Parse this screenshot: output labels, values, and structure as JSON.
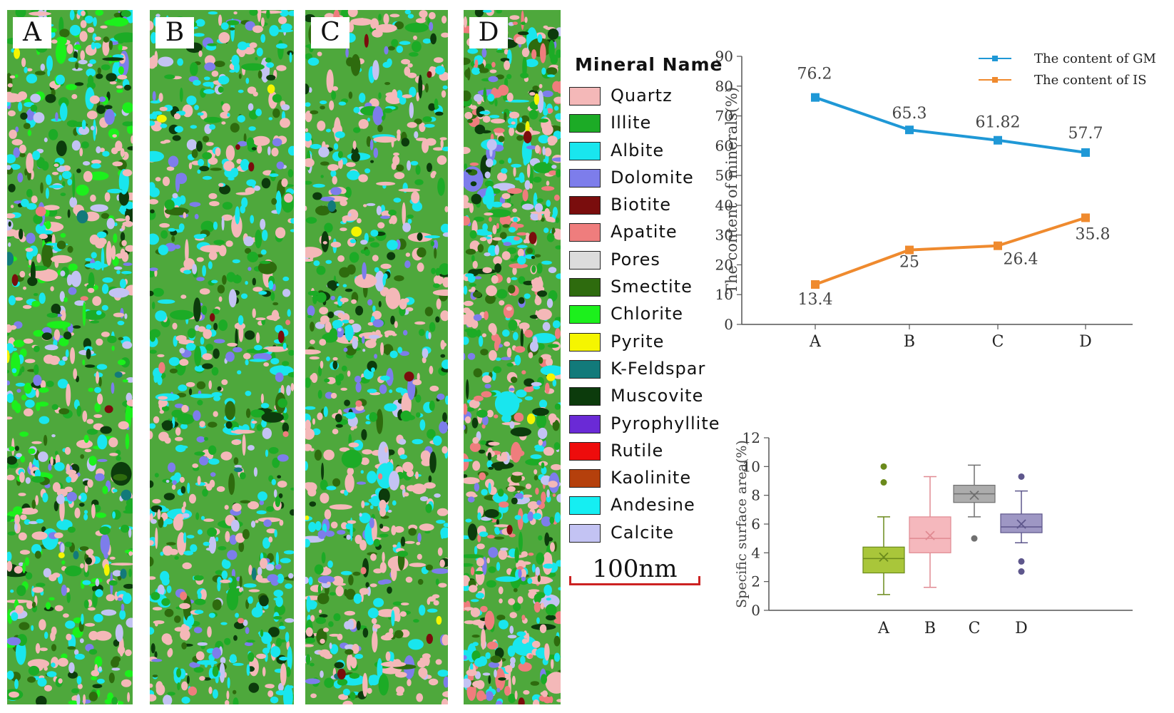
{
  "panels": [
    {
      "label": "A"
    },
    {
      "label": "B"
    },
    {
      "label": "C"
    },
    {
      "label": "D"
    }
  ],
  "legend": {
    "title": "Mineral Name",
    "items": [
      {
        "name": "Quartz",
        "color": "#f4b8b8"
      },
      {
        "name": "Illite",
        "color": "#1cab26"
      },
      {
        "name": "Albite",
        "color": "#19e6ee"
      },
      {
        "name": "Dolomite",
        "color": "#7d7deb"
      },
      {
        "name": "Biotite",
        "color": "#7a0d0d"
      },
      {
        "name": "Apatite",
        "color": "#ef7d7d"
      },
      {
        "name": "Pores",
        "color": "#dcdcdc"
      },
      {
        "name": "Smectite",
        "color": "#2e6b0e"
      },
      {
        "name": "Chlorite",
        "color": "#1cf01c"
      },
      {
        "name": "Pyrite",
        "color": "#f5f500"
      },
      {
        "name": "K-Feldspar",
        "color": "#127a7a"
      },
      {
        "name": "Muscovite",
        "color": "#0c3b0c"
      },
      {
        "name": "Pyrophyllite",
        "color": "#6a2ad6"
      },
      {
        "name": "Rutile",
        "color": "#ee0c0c"
      },
      {
        "name": "Kaolinite",
        "color": "#b5400c"
      },
      {
        "name": "Andesine",
        "color": "#15eef2"
      },
      {
        "name": "Calcite",
        "color": "#c3c3f3"
      }
    ]
  },
  "scale_bar": {
    "label": "100nm",
    "color": "#cc2222"
  },
  "chart_data": [
    {
      "type": "line",
      "title": "",
      "xlabel": "",
      "ylabel": "The content of minerals(%)",
      "categories": [
        "A",
        "B",
        "C",
        "D"
      ],
      "ylim": [
        0,
        90
      ],
      "yticks": [
        0,
        10,
        20,
        30,
        40,
        50,
        60,
        70,
        80,
        90
      ],
      "legend_position": "top-right",
      "series": [
        {
          "name": "The content of GM",
          "color": "#1f98d6",
          "values": [
            76.2,
            65.3,
            61.82,
            57.7
          ],
          "labels": [
            "76.2",
            "65.3",
            "61.82",
            "57.7"
          ]
        },
        {
          "name": "The  content of IS",
          "color": "#ef8a2e",
          "values": [
            13.4,
            25,
            26.4,
            35.8
          ],
          "labels": [
            "13.4",
            "25",
            "26.4",
            "35.8"
          ]
        }
      ]
    },
    {
      "type": "box",
      "title": "",
      "xlabel": "",
      "ylabel": "Specific surface area(%)",
      "categories": [
        "A",
        "B",
        "C",
        "D"
      ],
      "ylim": [
        0,
        12
      ],
      "yticks": [
        0,
        2,
        4,
        6,
        8,
        10,
        12
      ],
      "boxes": [
        {
          "name": "A",
          "min": 1.1,
          "q1": 2.6,
          "median": 3.6,
          "q3": 4.4,
          "max": 6.5,
          "mean": 3.7,
          "outliers": [
            8.9,
            10.0
          ],
          "fill": "#a9c63a",
          "stroke": "#6b8a1c"
        },
        {
          "name": "B",
          "min": 1.6,
          "q1": 4.0,
          "median": 5.0,
          "q3": 6.5,
          "max": 9.3,
          "mean": 5.2,
          "outliers": [],
          "fill": "#f5b8bd",
          "stroke": "#e08a92"
        },
        {
          "name": "C",
          "min": 6.5,
          "q1": 7.5,
          "median": 8.1,
          "q3": 8.7,
          "max": 10.1,
          "mean": 8.0,
          "outliers": [
            5.0
          ],
          "fill": "#acacac",
          "stroke": "#707070"
        },
        {
          "name": "D",
          "min": 4.7,
          "q1": 5.4,
          "median": 5.8,
          "q3": 6.7,
          "max": 8.3,
          "mean": 6.0,
          "outliers": [
            3.4,
            2.7,
            9.3
          ],
          "fill": "#9e97c4",
          "stroke": "#5e578c"
        }
      ]
    }
  ]
}
